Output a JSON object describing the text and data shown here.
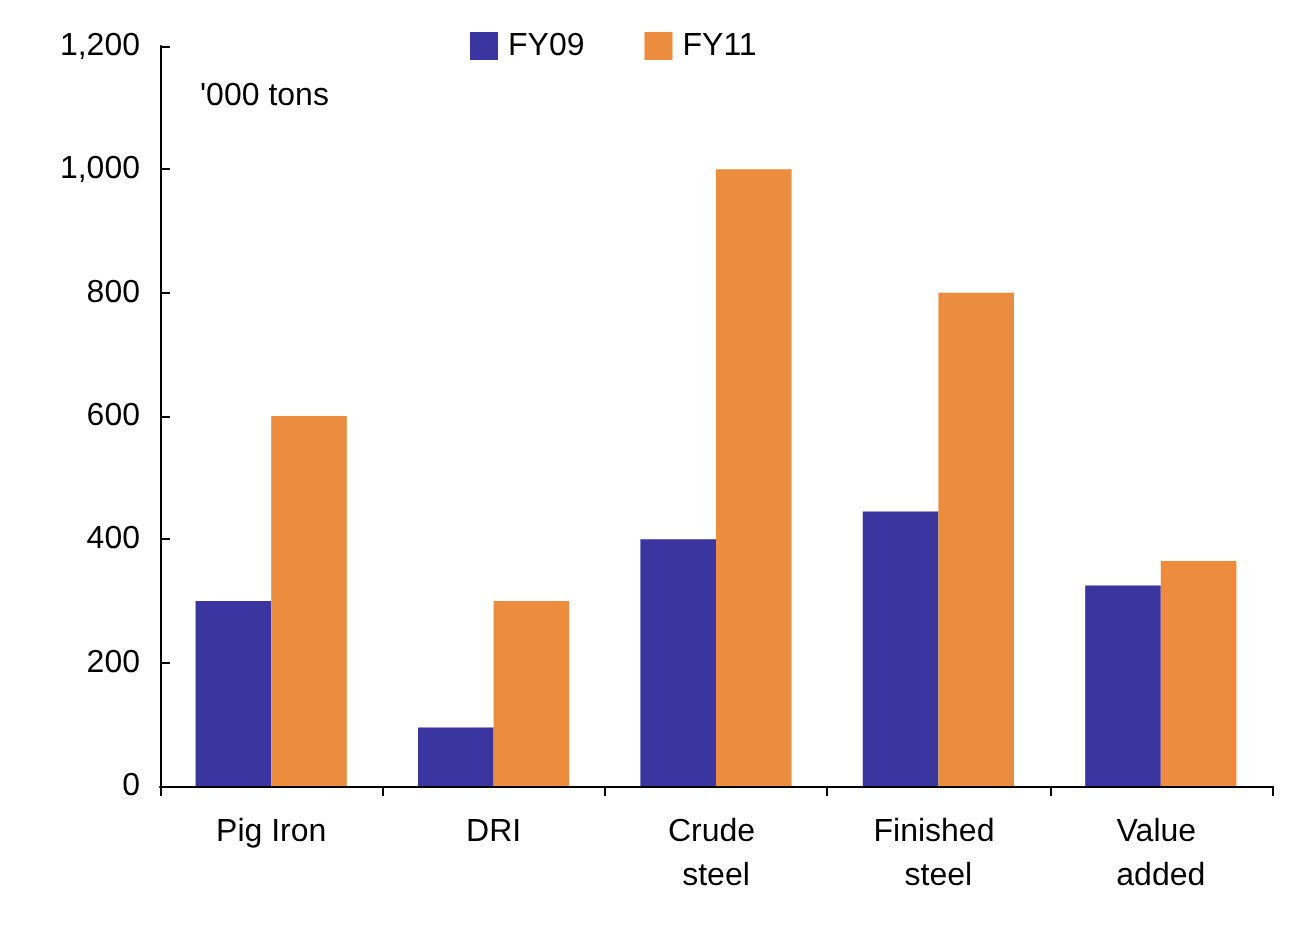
{
  "chart_data": {
    "type": "bar",
    "categories": [
      "Pig Iron",
      "DRI",
      "Crude steel",
      "Finished steel",
      "Value added"
    ],
    "series": [
      {
        "name": "FY09",
        "color": "#3a359f",
        "values": [
          300,
          95,
          400,
          445,
          325
        ]
      },
      {
        "name": "FY11",
        "color": "#eb8c3f",
        "values": [
          600,
          300,
          1000,
          800,
          365
        ]
      }
    ],
    "ylim": [
      0,
      1200
    ],
    "yticks": [
      0,
      {
        "value": 200,
        "label": "200"
      },
      {
        "value": 400,
        "label": "400"
      },
      {
        "value": 600,
        "label": "600"
      },
      {
        "value": 800,
        "label": "800"
      },
      {
        "value": 1000,
        "label": "1,000"
      },
      {
        "value": 1200,
        "label": "1,200"
      }
    ],
    "annotations": [
      "'000 tons"
    ],
    "grid": false,
    "legend": "top"
  }
}
